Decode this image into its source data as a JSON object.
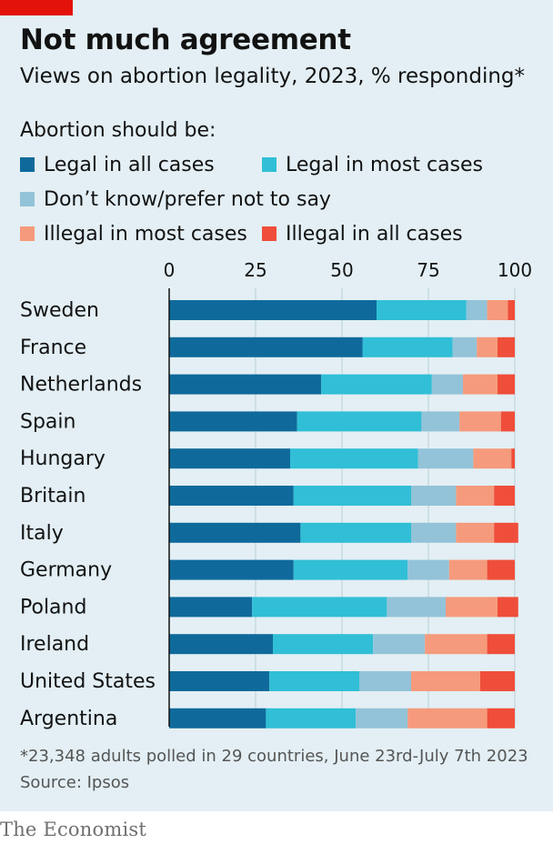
{
  "header": {
    "title": "Not much agreement",
    "subtitle": "Views on abortion legality, 2023, % responding*"
  },
  "legend": {
    "title": "Abortion should be:",
    "items": [
      {
        "label": "Legal in all cases",
        "color": "#0f6a9b"
      },
      {
        "label": "Legal in most cases",
        "color": "#30bfd6"
      },
      {
        "label": "Don’t know/prefer not to say",
        "color": "#93c3d8"
      },
      {
        "label": "Illegal in most cases",
        "color": "#f59a7c"
      },
      {
        "label": "Illegal in all cases",
        "color": "#ef4e3a"
      }
    ]
  },
  "chart_data": {
    "type": "bar",
    "orientation": "horizontal",
    "stacked": true,
    "xlim": [
      0,
      100
    ],
    "xticks": [
      "0",
      "25",
      "50",
      "75",
      "100"
    ],
    "grid": true,
    "categories": [
      "Sweden",
      "France",
      "Netherlands",
      "Spain",
      "Hungary",
      "Britain",
      "Italy",
      "Germany",
      "Poland",
      "Ireland",
      "United States",
      "Argentina"
    ],
    "series": [
      {
        "name": "Legal in all cases",
        "color": "#0f6a9b",
        "values": [
          60,
          56,
          44,
          37,
          35,
          36,
          38,
          36,
          24,
          30,
          29,
          28
        ]
      },
      {
        "name": "Legal in most cases",
        "color": "#30bfd6",
        "values": [
          26,
          26,
          32,
          36,
          37,
          34,
          32,
          33,
          39,
          29,
          26,
          26
        ]
      },
      {
        "name": "Don’t know/prefer not to say",
        "color": "#93c3d8",
        "values": [
          6,
          7,
          9,
          11,
          16,
          13,
          13,
          12,
          17,
          15,
          15,
          15
        ]
      },
      {
        "name": "Illegal in most cases",
        "color": "#f59a7c",
        "values": [
          6,
          6,
          10,
          12,
          11,
          11,
          11,
          11,
          15,
          18,
          20,
          23
        ]
      },
      {
        "name": "Illegal in all cases",
        "color": "#ef4e3a",
        "values": [
          2,
          5,
          5,
          4,
          1,
          6,
          7,
          8,
          6,
          8,
          10,
          8
        ]
      }
    ]
  },
  "footnote": "*23,348 adults polled in 29 countries, June 23rd-July 7th 2023",
  "source": "Source: Ipsos",
  "brand": "The Economist"
}
